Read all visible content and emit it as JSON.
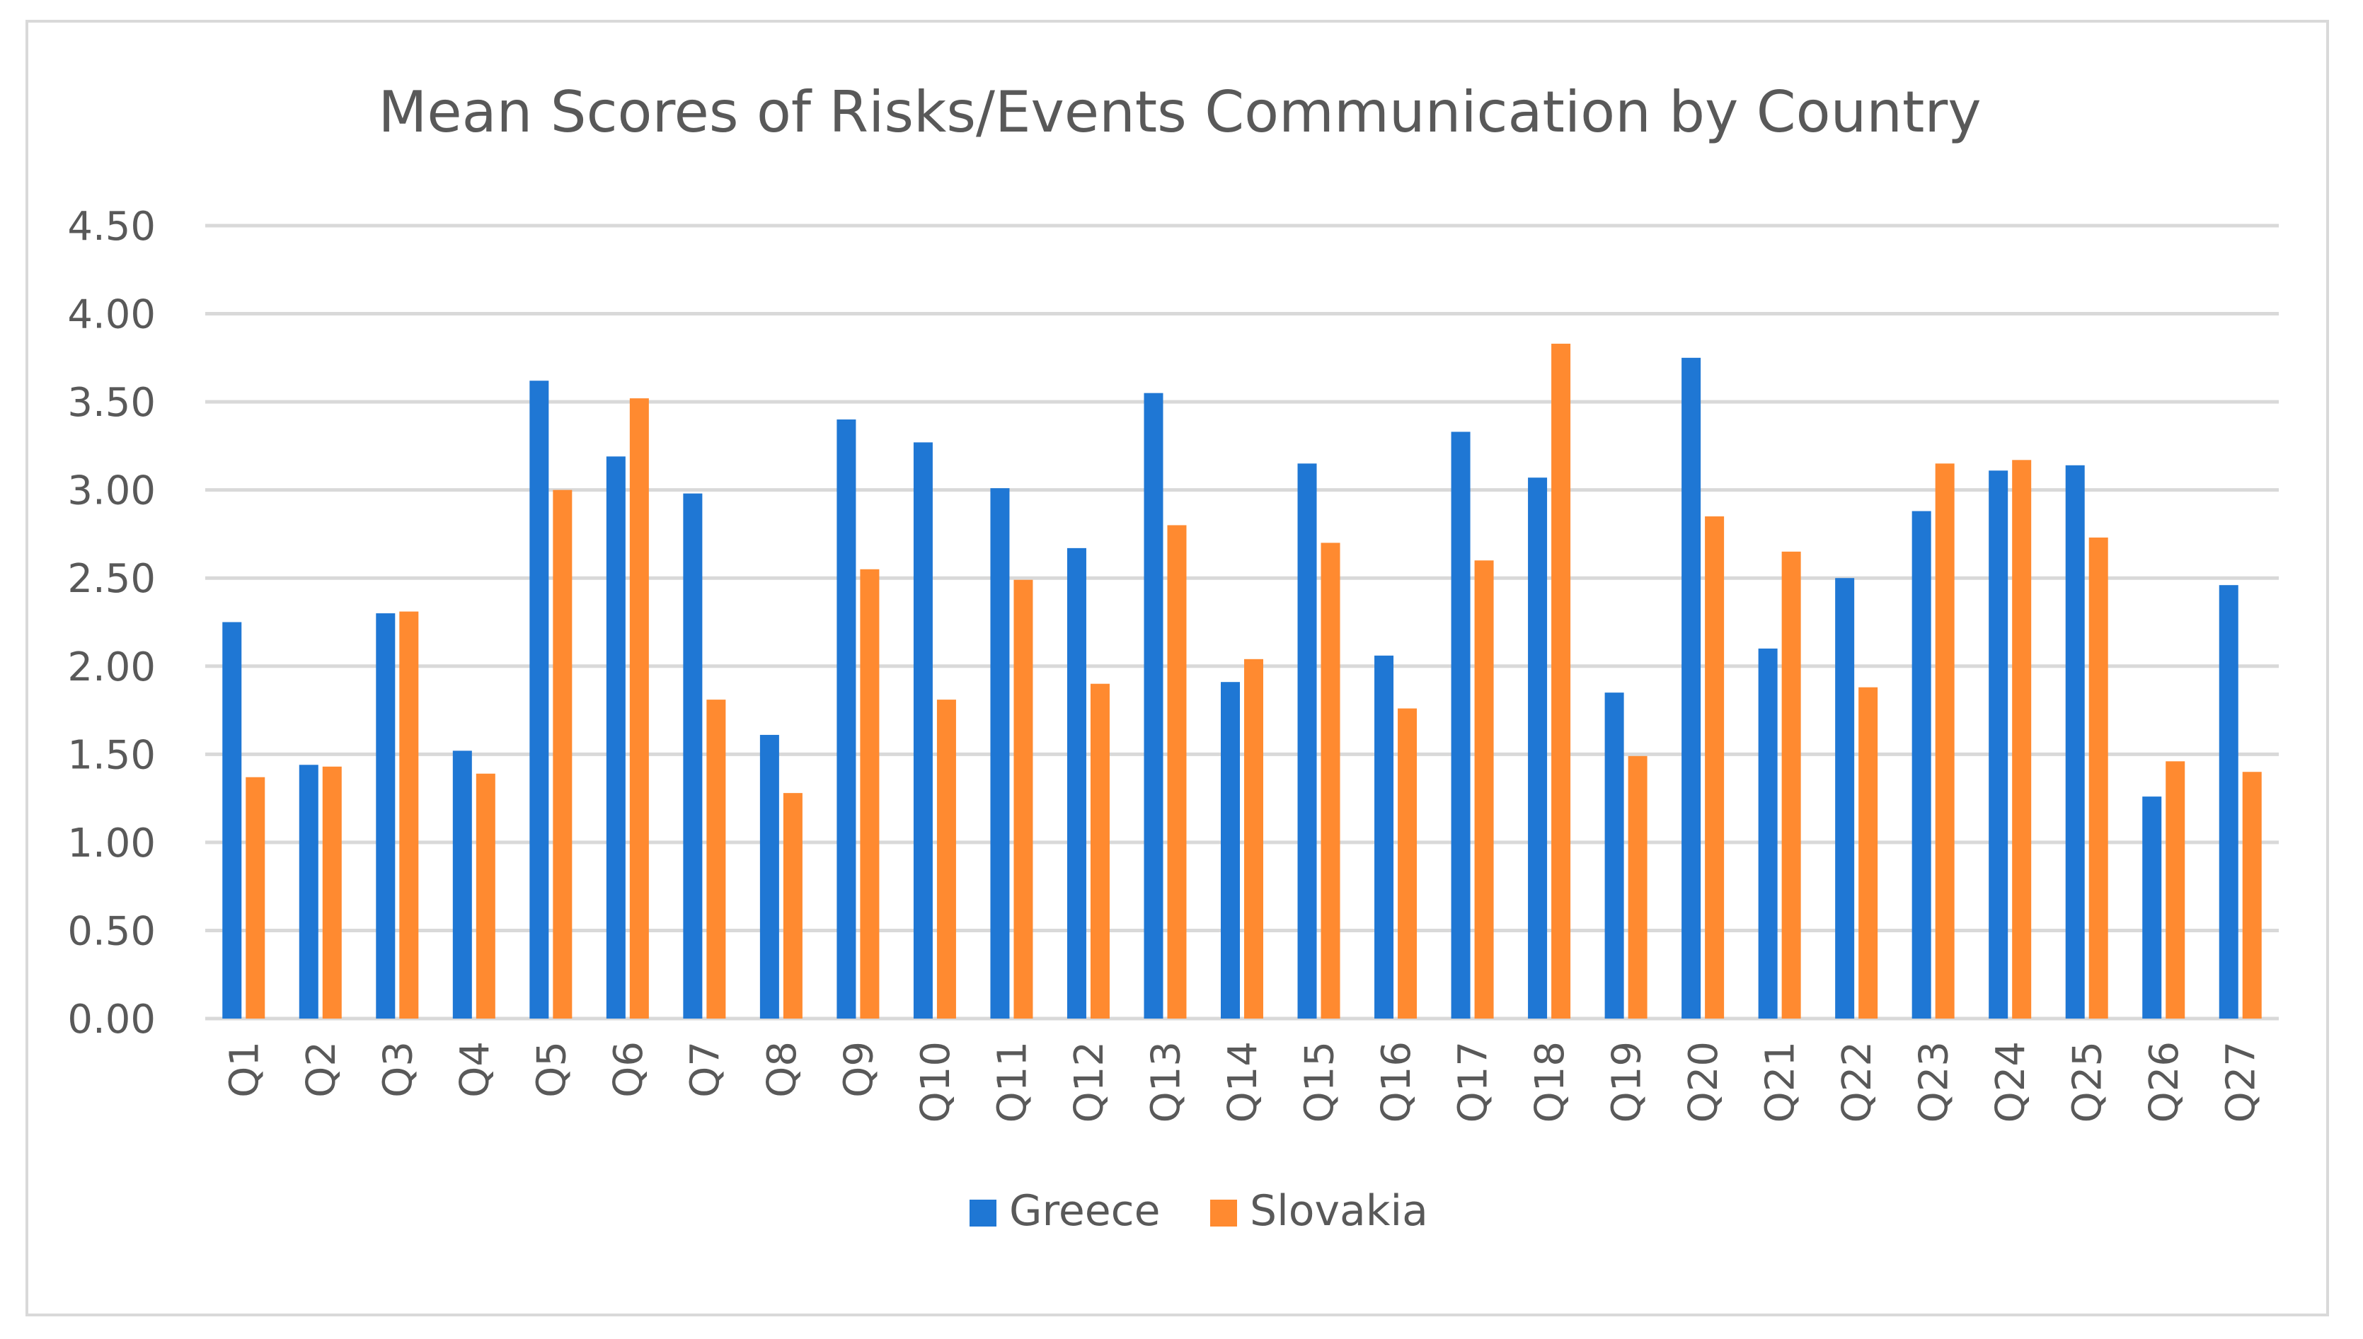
{
  "chart_data": {
    "type": "bar",
    "title": "Mean Scores of Risks/Events Communication by Country",
    "categories": [
      "Q1",
      "Q2",
      "Q3",
      "Q4",
      "Q5",
      "Q6",
      "Q7",
      "Q8",
      "Q9",
      "Q10",
      "Q11",
      "Q12",
      "Q13",
      "Q14",
      "Q15",
      "Q16",
      "Q17",
      "Q18",
      "Q19",
      "Q20",
      "Q21",
      "Q22",
      "Q23",
      "Q24",
      "Q25",
      "Q26",
      "Q27"
    ],
    "series": [
      {
        "name": "Greece",
        "color": "#1f77d4",
        "values": [
          2.25,
          1.44,
          2.3,
          1.52,
          3.62,
          3.19,
          2.98,
          1.61,
          3.4,
          3.27,
          3.01,
          2.67,
          3.55,
          1.91,
          3.15,
          2.06,
          3.33,
          3.07,
          1.85,
          3.75,
          2.1,
          2.5,
          2.88,
          3.11,
          3.14,
          1.26,
          2.46
        ]
      },
      {
        "name": "Slovakia",
        "color": "#ff8a30",
        "values": [
          1.37,
          1.43,
          2.31,
          1.39,
          3.0,
          3.52,
          1.81,
          1.28,
          2.55,
          1.81,
          2.49,
          1.9,
          2.8,
          2.04,
          2.7,
          1.76,
          2.6,
          3.83,
          1.49,
          2.85,
          2.65,
          1.88,
          3.15,
          3.17,
          2.73,
          1.46,
          1.4
        ]
      }
    ],
    "ylim": [
      0,
      4.5
    ],
    "yticks": [
      "0.00",
      "0.50",
      "1.00",
      "1.50",
      "2.00",
      "2.50",
      "3.00",
      "3.50",
      "4.00",
      "4.50"
    ],
    "ytick_values": [
      0,
      0.5,
      1,
      1.5,
      2,
      2.5,
      3,
      3.5,
      4,
      4.5
    ],
    "xlabel": "",
    "ylabel": "",
    "grid": true,
    "legend_position": "bottom",
    "gridline_color": "#d9d9d9"
  }
}
